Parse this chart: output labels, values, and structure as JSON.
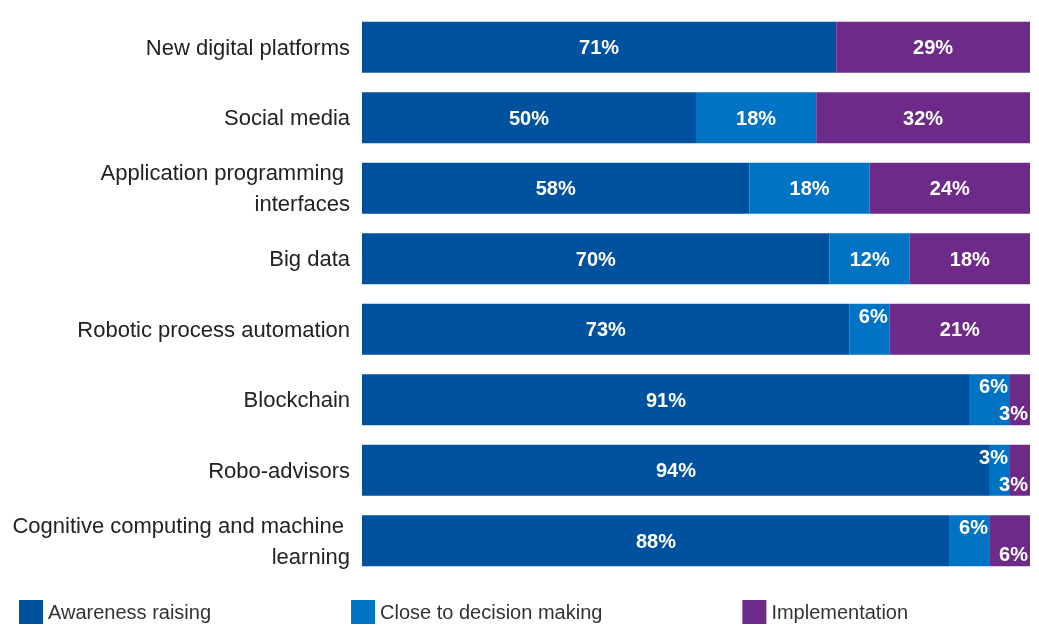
{
  "chart_data": {
    "type": "bar",
    "orientation": "horizontal",
    "stacked": true,
    "xlim": [
      0,
      100
    ],
    "legend": "bottom",
    "categories": [
      "New digital platforms",
      "Social media",
      "Application programming interfaces",
      "Big data",
      "Robotic process automation",
      "Blockchain",
      "Robo-advisors",
      "Cognitive computing and machine learning"
    ],
    "series": [
      {
        "name": "Awareness raising",
        "color": "#00519e",
        "values": [
          71,
          50,
          58,
          70,
          73,
          91,
          94,
          88
        ],
        "value_labels": [
          "71%",
          "50%",
          "58%",
          "70%",
          "73%",
          "91%",
          "94%",
          "88%"
        ]
      },
      {
        "name": "Close to decision making",
        "color": "#0073c4",
        "values": [
          null,
          18,
          18,
          12,
          6,
          6,
          3,
          6
        ],
        "value_labels": [
          null,
          "18%",
          "18%",
          "12%",
          "6%",
          "6%",
          "3%",
          "6%"
        ]
      },
      {
        "name": "Implementation",
        "color": "#6d2a88",
        "values": [
          29,
          32,
          24,
          18,
          21,
          3,
          3,
          6
        ],
        "value_labels": [
          "29%",
          "32%",
          "24%",
          "18%",
          "21%",
          "3%",
          "3%",
          "6%"
        ]
      }
    ]
  }
}
